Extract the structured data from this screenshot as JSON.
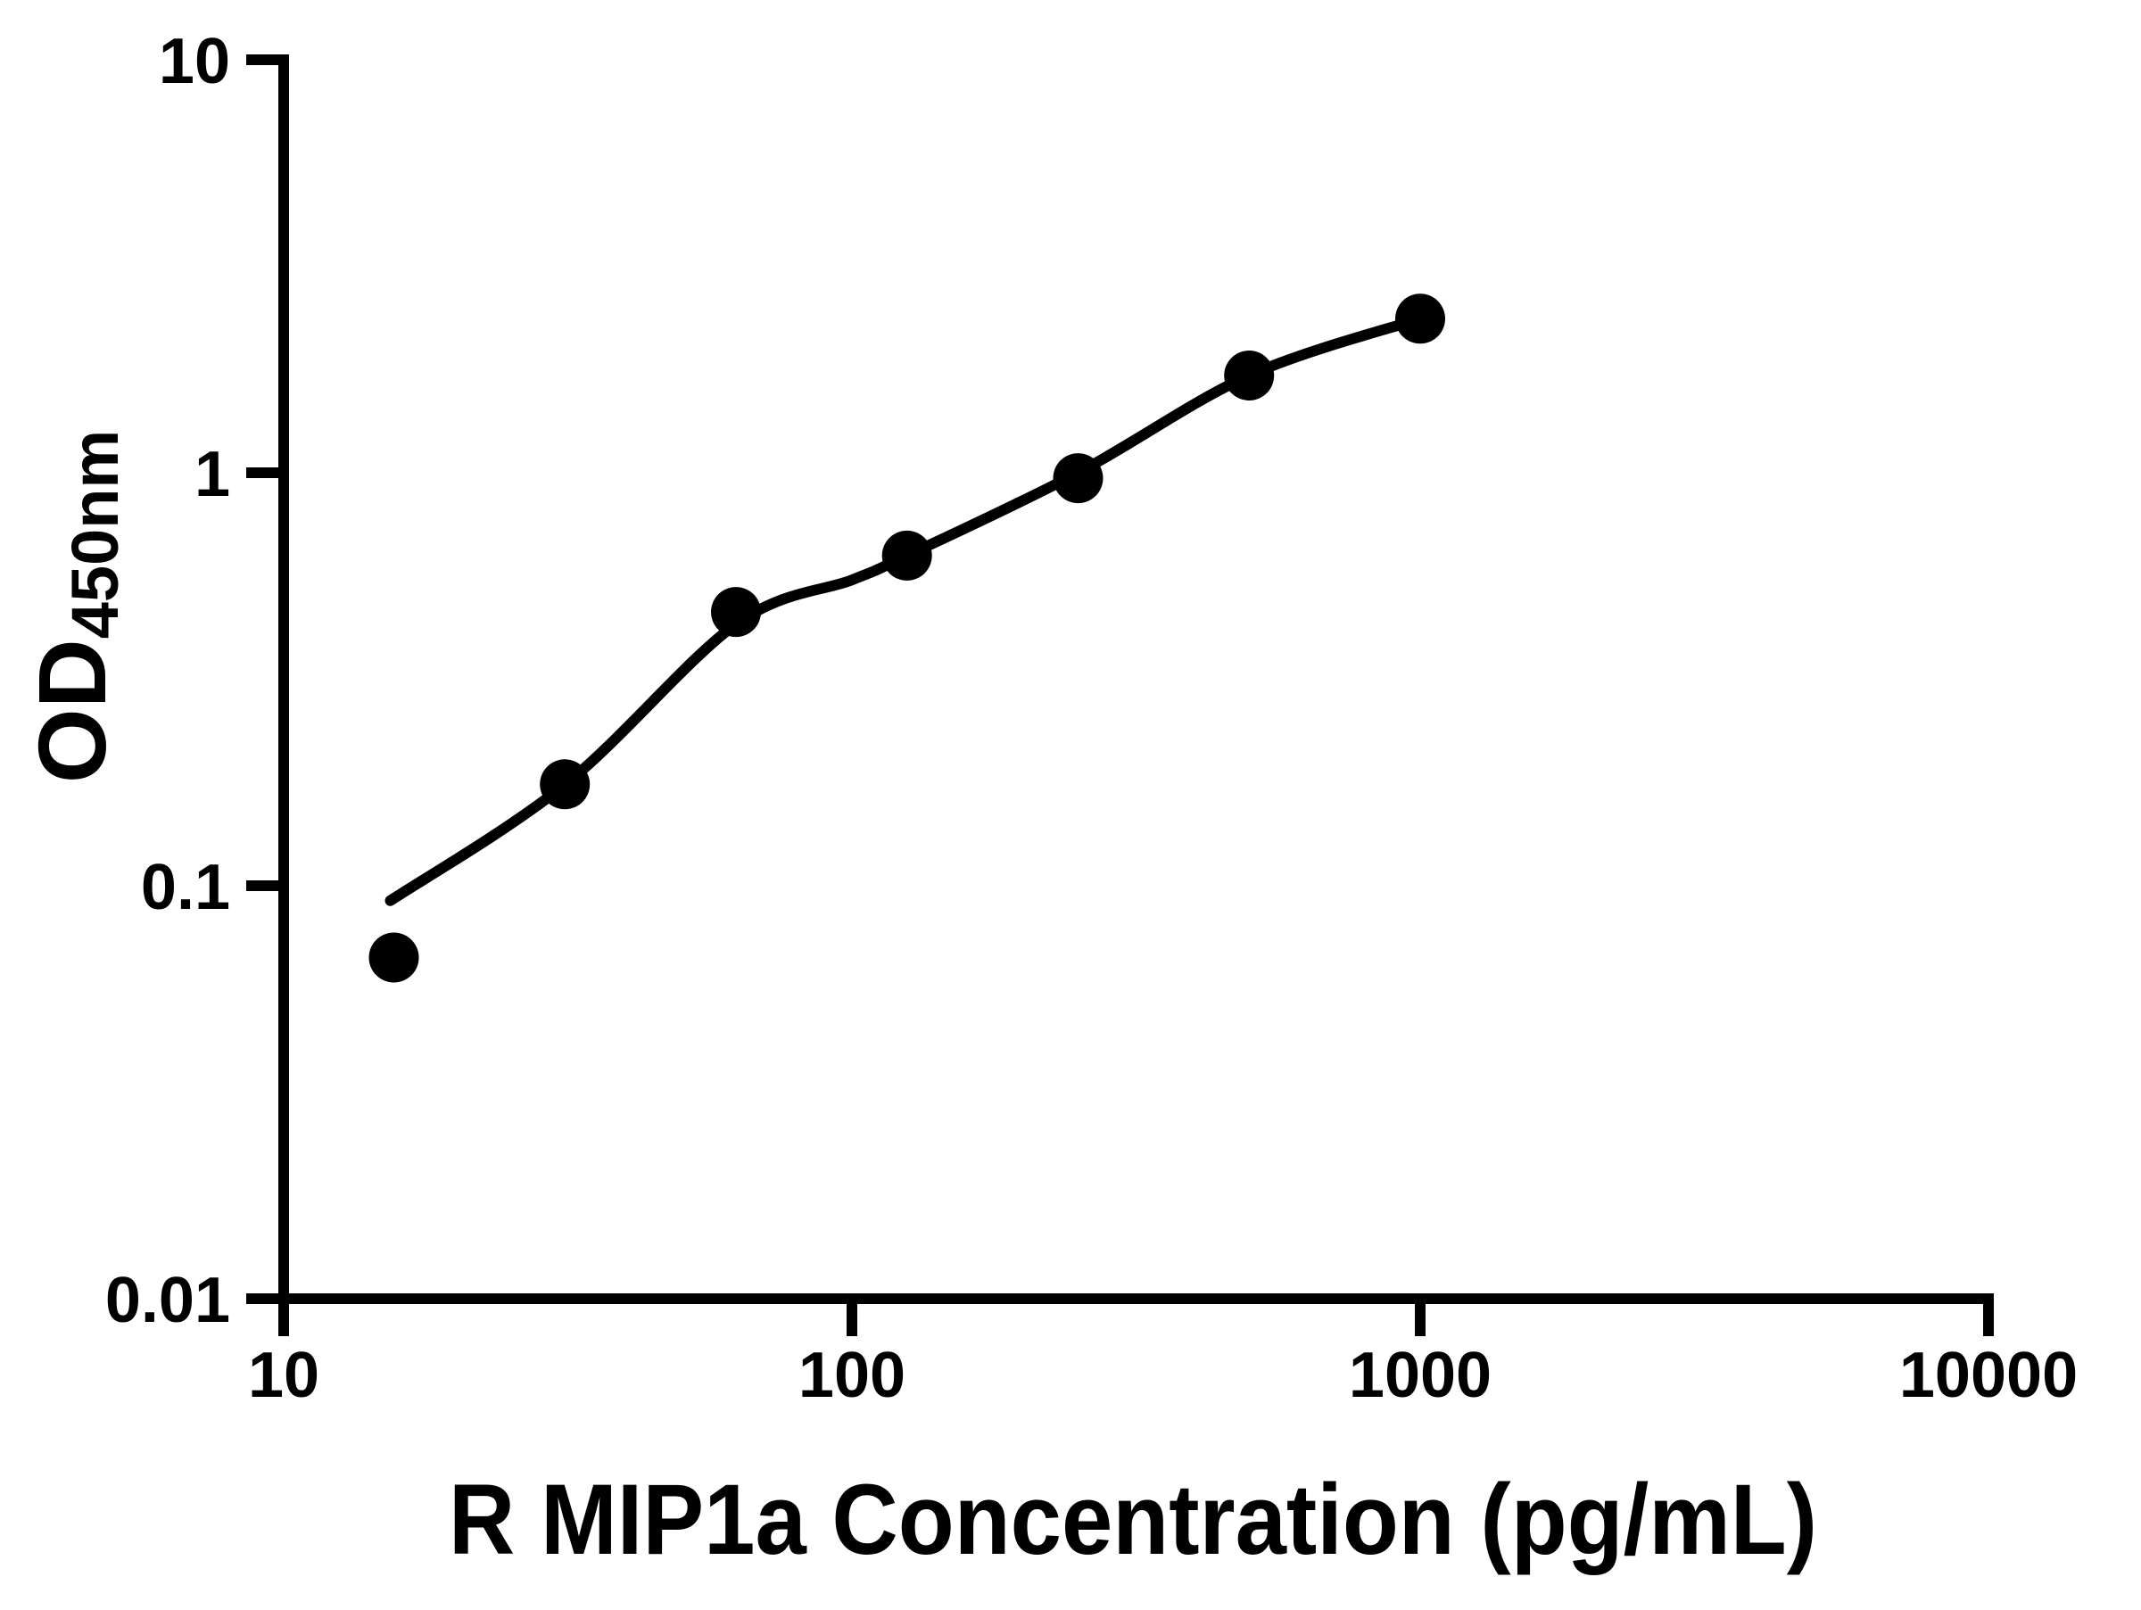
{
  "chart_data": {
    "type": "scatter",
    "title": "",
    "xlabel": "R MIP1a Concentration (pg/mL)",
    "ylabel": "OD450nm",
    "ylabel_main": "OD",
    "ylabel_sub": "450nm",
    "x_scale": "log",
    "y_scale": "log",
    "xlim": [
      10,
      10000
    ],
    "ylim": [
      0.01,
      10
    ],
    "grid": false,
    "legend": "none",
    "marker_color": "#000000",
    "line_color": "#000000",
    "background_color": "#ffffff",
    "x_ticks": [
      {
        "label": "10",
        "value": 10
      },
      {
        "label": "100",
        "value": 100
      },
      {
        "label": "1000",
        "value": 1000
      },
      {
        "label": "10000",
        "value": 10000
      }
    ],
    "y_ticks": [
      {
        "label": "10",
        "value": 10
      },
      {
        "label": "1",
        "value": 1
      },
      {
        "label": "0.1",
        "value": 0.1
      },
      {
        "label": "0.01",
        "value": 0.01
      }
    ],
    "points": [
      {
        "x": 15.625,
        "y": 0.067
      },
      {
        "x": 31.25,
        "y": 0.176
      },
      {
        "x": 62.5,
        "y": 0.46
      },
      {
        "x": 125,
        "y": 0.63
      },
      {
        "x": 250,
        "y": 0.97
      },
      {
        "x": 500,
        "y": 1.72
      },
      {
        "x": 1000,
        "y": 2.36
      }
    ],
    "curve_points": [
      {
        "x": 15.4,
        "y": 0.092
      },
      {
        "x": 31.3,
        "y": 0.176
      },
      {
        "x": 62.5,
        "y": 0.43
      },
      {
        "x": 100,
        "y": 0.55
      },
      {
        "x": 125,
        "y": 0.63
      },
      {
        "x": 250,
        "y": 1.0
      },
      {
        "x": 500,
        "y": 1.72
      },
      {
        "x": 1000,
        "y": 2.36
      }
    ]
  }
}
